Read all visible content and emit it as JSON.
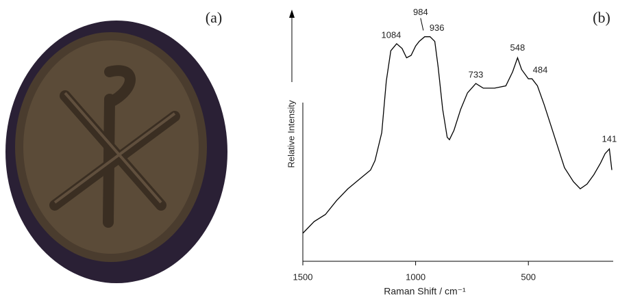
{
  "image_panel": {
    "label": "(a)"
  },
  "chart_data": {
    "type": "line",
    "panel_label": "(b)",
    "x_label": "Raman Shift / cm⁻¹",
    "y_label": "Relative Intensity",
    "x": [
      1500,
      1450,
      1400,
      1350,
      1300,
      1250,
      1200,
      1180,
      1150,
      1130,
      1110,
      1084,
      1060,
      1040,
      1020,
      1000,
      984,
      960,
      936,
      915,
      900,
      880,
      860,
      850,
      830,
      800,
      770,
      733,
      700,
      650,
      600,
      570,
      548,
      530,
      500,
      484,
      460,
      430,
      400,
      370,
      340,
      300,
      270,
      240,
      210,
      180,
      160,
      141,
      130
    ],
    "series": [
      {
        "name": "Relative Intensity",
        "color": "#000000",
        "values": [
          12,
          17,
          20,
          26,
          31,
          35,
          39,
          43,
          55,
          77,
          90,
          93,
          91,
          87,
          88,
          92,
          94,
          96,
          96,
          94,
          83,
          65,
          53,
          52,
          56,
          65,
          72,
          76,
          74,
          74,
          75,
          81,
          87,
          82,
          78,
          78,
          75,
          67,
          58,
          49,
          40,
          34,
          31,
          33,
          37,
          42,
          46,
          48,
          39
        ]
      }
    ],
    "annotations": [
      1084,
      984,
      936,
      733,
      548,
      484,
      141
    ],
    "xlim": [
      1500,
      130
    ],
    "xticks": [
      1500,
      1000,
      500
    ],
    "ylim": [
      0,
      100
    ]
  }
}
